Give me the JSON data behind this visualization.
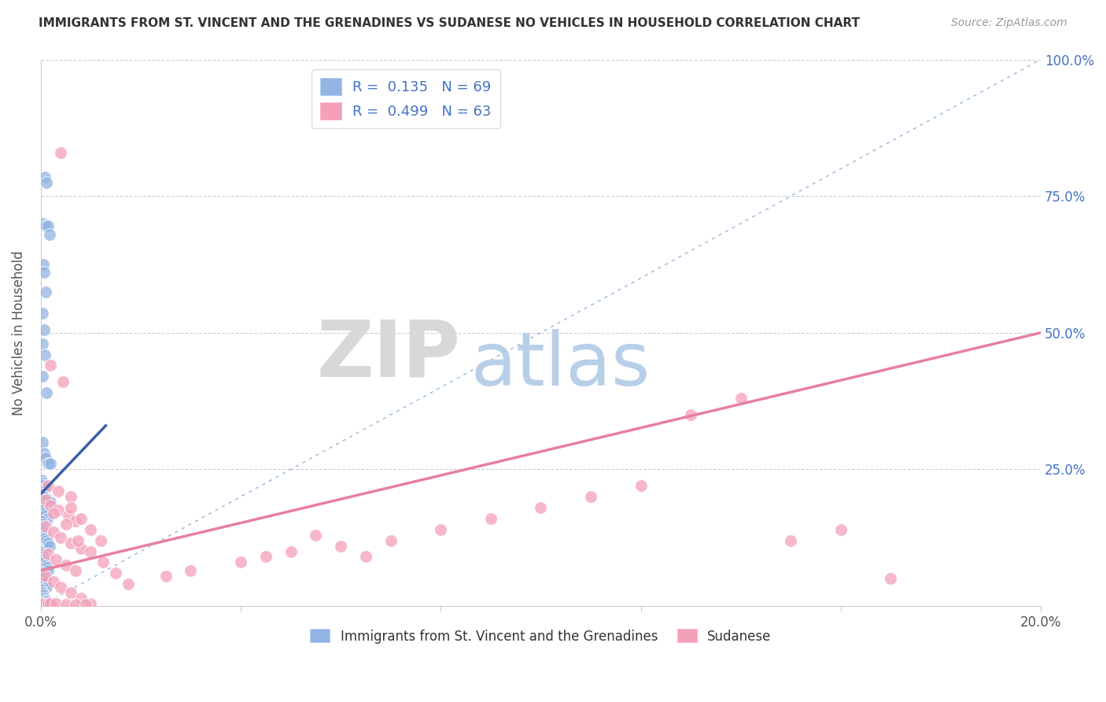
{
  "title": "IMMIGRANTS FROM ST. VINCENT AND THE GRENADINES VS SUDANESE NO VEHICLES IN HOUSEHOLD CORRELATION CHART",
  "source": "Source: ZipAtlas.com",
  "ylabel": "No Vehicles in Household",
  "x_min": 0.0,
  "x_max": 0.2,
  "y_min": 0.0,
  "y_max": 1.0,
  "x_ticks": [
    0.0,
    0.04,
    0.08,
    0.12,
    0.16,
    0.2
  ],
  "y_ticks": [
    0.0,
    0.25,
    0.5,
    0.75,
    1.0
  ],
  "y_tick_labels": [
    "",
    "25.0%",
    "50.0%",
    "75.0%",
    "100.0%"
  ],
  "legend1_label": "R =  0.135   N = 69",
  "legend2_label": "R =  0.499   N = 63",
  "bottom_legend1": "Immigrants from St. Vincent and the Grenadines",
  "bottom_legend2": "Sudanese",
  "blue_color": "#92b4e3",
  "pink_color": "#f4a0b8",
  "blue_line_color": "#3a5fa8",
  "pink_line_color": "#e87fa0",
  "blue_scatter": [
    [
      0.0008,
      0.785
    ],
    [
      0.0012,
      0.775
    ],
    [
      0.0005,
      0.7
    ],
    [
      0.001,
      0.695
    ],
    [
      0.0015,
      0.695
    ],
    [
      0.0018,
      0.68
    ],
    [
      0.0005,
      0.625
    ],
    [
      0.0007,
      0.61
    ],
    [
      0.001,
      0.575
    ],
    [
      0.0003,
      0.535
    ],
    [
      0.0006,
      0.505
    ],
    [
      0.0003,
      0.48
    ],
    [
      0.0008,
      0.46
    ],
    [
      0.0003,
      0.42
    ],
    [
      0.0012,
      0.39
    ],
    [
      0.0004,
      0.3
    ],
    [
      0.0006,
      0.28
    ],
    [
      0.001,
      0.27
    ],
    [
      0.0015,
      0.26
    ],
    [
      0.002,
      0.26
    ],
    [
      0.0002,
      0.23
    ],
    [
      0.0004,
      0.225
    ],
    [
      0.0005,
      0.22
    ],
    [
      0.0009,
      0.215
    ],
    [
      0.0002,
      0.21
    ],
    [
      0.0004,
      0.205
    ],
    [
      0.0007,
      0.2
    ],
    [
      0.0009,
      0.195
    ],
    [
      0.0015,
      0.195
    ],
    [
      0.002,
      0.19
    ],
    [
      0.0001,
      0.185
    ],
    [
      0.0003,
      0.18
    ],
    [
      0.0005,
      0.175
    ],
    [
      0.0008,
      0.17
    ],
    [
      0.001,
      0.165
    ],
    [
      0.0013,
      0.16
    ],
    [
      0.0002,
      0.155
    ],
    [
      0.0004,
      0.15
    ],
    [
      0.0001,
      0.145
    ],
    [
      0.0003,
      0.14
    ],
    [
      0.0005,
      0.135
    ],
    [
      0.0008,
      0.13
    ],
    [
      0.001,
      0.125
    ],
    [
      0.0012,
      0.12
    ],
    [
      0.0015,
      0.115
    ],
    [
      0.0018,
      0.11
    ],
    [
      0.0001,
      0.1
    ],
    [
      0.0003,
      0.095
    ],
    [
      0.0005,
      0.09
    ],
    [
      0.0007,
      0.085
    ],
    [
      0.0009,
      0.08
    ],
    [
      0.0011,
      0.075
    ],
    [
      0.0013,
      0.07
    ],
    [
      0.0015,
      0.065
    ],
    [
      0.0002,
      0.06
    ],
    [
      0.0004,
      0.055
    ],
    [
      0.0006,
      0.05
    ],
    [
      0.0008,
      0.045
    ],
    [
      0.001,
      0.04
    ],
    [
      0.0012,
      0.035
    ],
    [
      0.0001,
      0.03
    ],
    [
      0.0003,
      0.025
    ],
    [
      0.0005,
      0.02
    ],
    [
      0.0007,
      0.015
    ],
    [
      0.0009,
      0.01
    ],
    [
      0.0011,
      0.008
    ],
    [
      0.0002,
      0.005
    ],
    [
      0.0001,
      0.003
    ],
    [
      0.0004,
      0.002
    ]
  ],
  "pink_scatter": [
    [
      0.004,
      0.83
    ],
    [
      0.002,
      0.44
    ],
    [
      0.0045,
      0.41
    ],
    [
      0.006,
      0.2
    ],
    [
      0.001,
      0.195
    ],
    [
      0.002,
      0.185
    ],
    [
      0.0035,
      0.175
    ],
    [
      0.0055,
      0.165
    ],
    [
      0.007,
      0.155
    ],
    [
      0.001,
      0.145
    ],
    [
      0.0025,
      0.135
    ],
    [
      0.004,
      0.125
    ],
    [
      0.006,
      0.115
    ],
    [
      0.008,
      0.105
    ],
    [
      0.0015,
      0.095
    ],
    [
      0.003,
      0.085
    ],
    [
      0.005,
      0.075
    ],
    [
      0.007,
      0.065
    ],
    [
      0.001,
      0.055
    ],
    [
      0.0025,
      0.045
    ],
    [
      0.004,
      0.035
    ],
    [
      0.006,
      0.025
    ],
    [
      0.008,
      0.015
    ],
    [
      0.01,
      0.005
    ],
    [
      0.0005,
      0.005
    ],
    [
      0.0015,
      0.005
    ],
    [
      0.002,
      0.005
    ],
    [
      0.003,
      0.005
    ],
    [
      0.005,
      0.003
    ],
    [
      0.007,
      0.003
    ],
    [
      0.009,
      0.003
    ],
    [
      0.0015,
      0.22
    ],
    [
      0.0035,
      0.21
    ],
    [
      0.006,
      0.18
    ],
    [
      0.008,
      0.16
    ],
    [
      0.01,
      0.14
    ],
    [
      0.012,
      0.12
    ],
    [
      0.0025,
      0.17
    ],
    [
      0.005,
      0.15
    ],
    [
      0.0075,
      0.12
    ],
    [
      0.01,
      0.1
    ],
    [
      0.0125,
      0.08
    ],
    [
      0.015,
      0.06
    ],
    [
      0.0175,
      0.04
    ],
    [
      0.025,
      0.055
    ],
    [
      0.03,
      0.065
    ],
    [
      0.04,
      0.08
    ],
    [
      0.045,
      0.09
    ],
    [
      0.05,
      0.1
    ],
    [
      0.055,
      0.13
    ],
    [
      0.06,
      0.11
    ],
    [
      0.065,
      0.09
    ],
    [
      0.07,
      0.12
    ],
    [
      0.08,
      0.14
    ],
    [
      0.09,
      0.16
    ],
    [
      0.1,
      0.18
    ],
    [
      0.11,
      0.2
    ],
    [
      0.12,
      0.22
    ],
    [
      0.13,
      0.35
    ],
    [
      0.14,
      0.38
    ],
    [
      0.15,
      0.12
    ],
    [
      0.16,
      0.14
    ],
    [
      0.17,
      0.05
    ]
  ],
  "blue_line_x": [
    0.0,
    0.013
  ],
  "blue_line_y": [
    0.205,
    0.33
  ],
  "pink_line_x": [
    0.0,
    0.2
  ],
  "pink_line_y": [
    0.065,
    0.5
  ],
  "diag_line_x": [
    0.0,
    0.2
  ],
  "diag_line_y": [
    0.0,
    1.0
  ],
  "watermark_zip": "ZIP",
  "watermark_atlas": "atlas",
  "watermark_zip_color": "#d8d8d8",
  "watermark_atlas_color": "#b8cfe8"
}
